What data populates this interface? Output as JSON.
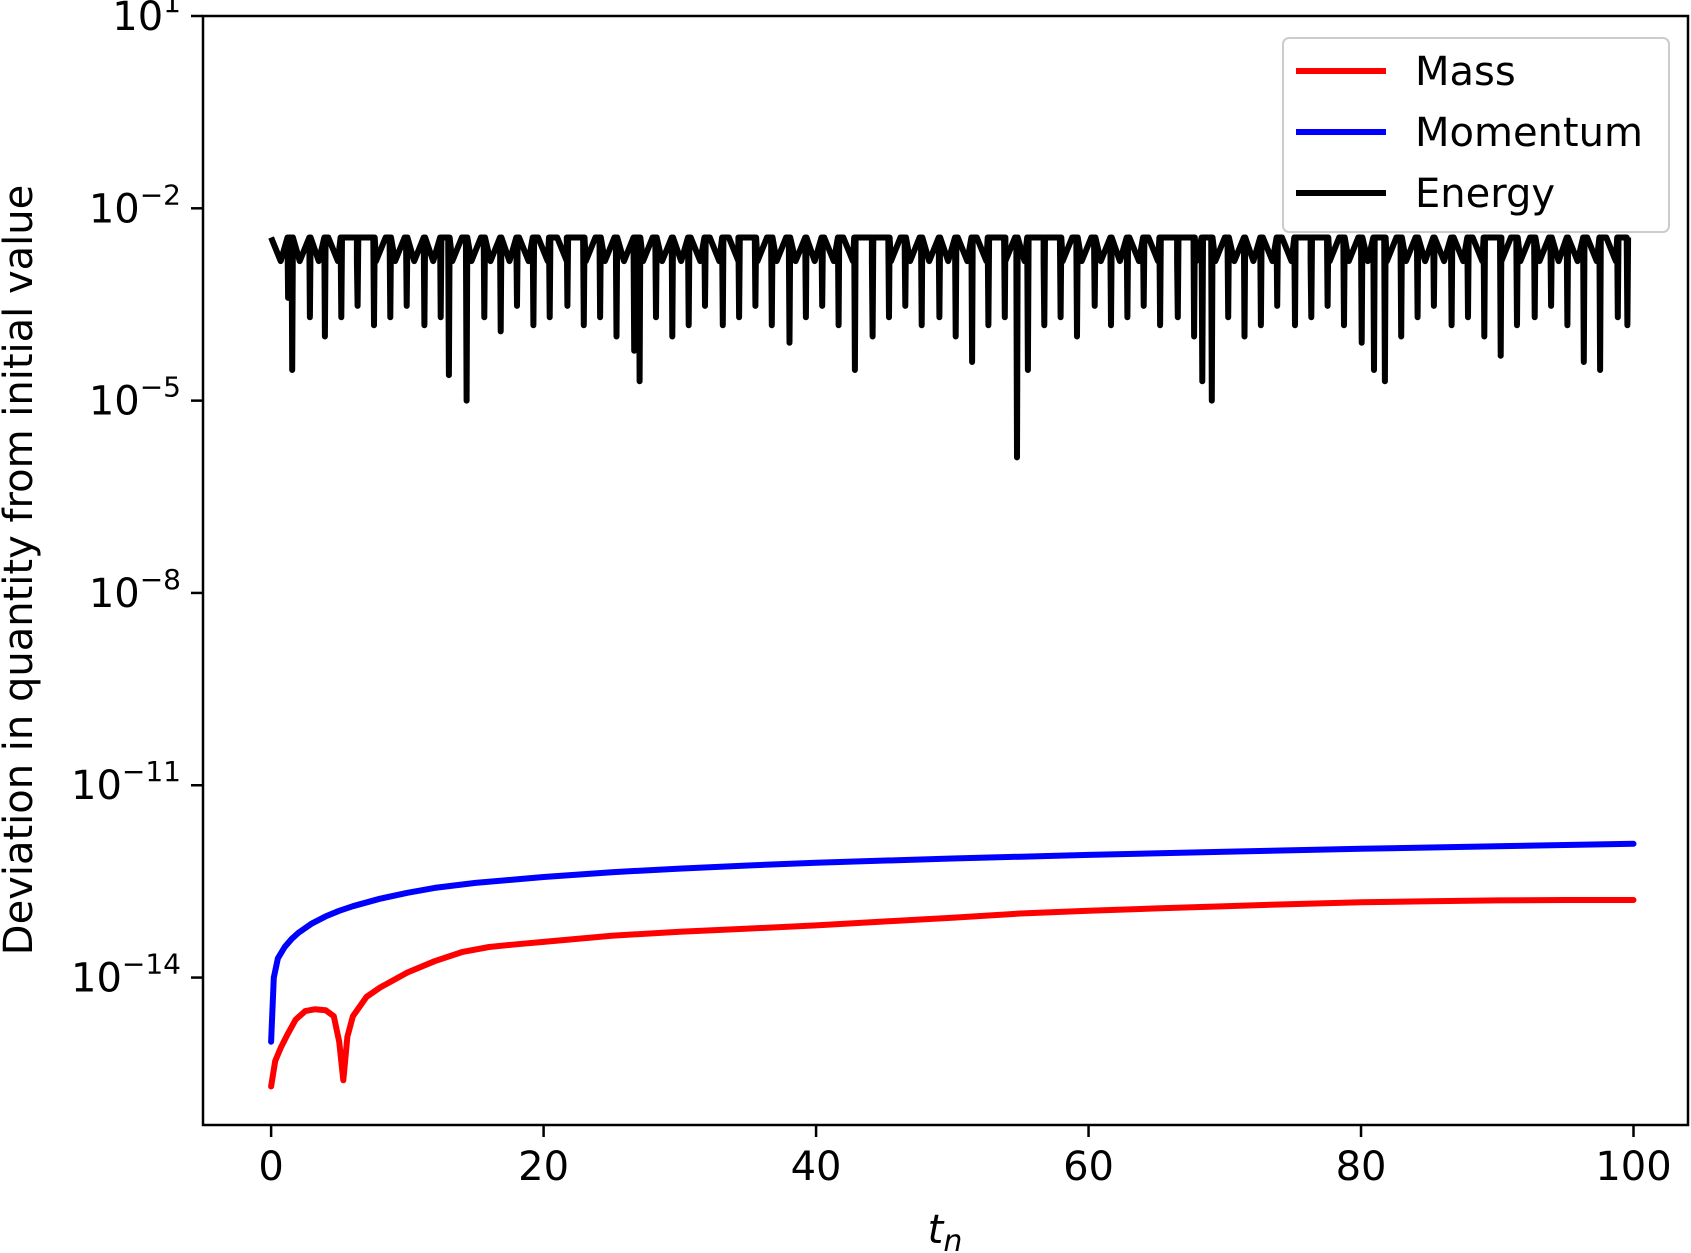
{
  "chart_data": {
    "type": "line",
    "title": "",
    "xlabel": "t",
    "xlabel_subscript": "n",
    "ylabel": "Deviation in quantity from initial value",
    "yscale": "log",
    "xlim": [
      -5,
      104
    ],
    "ylim_exp": [
      -16.3,
      1
    ],
    "xticks": [
      0,
      20,
      40,
      60,
      80,
      100
    ],
    "xtick_labels": [
      "0",
      "20",
      "40",
      "60",
      "80",
      "100"
    ],
    "yticks_exp": [
      1,
      -2,
      -5,
      -8,
      -11,
      -14
    ],
    "ytick_base": "10",
    "ytick_exponents": [
      "1",
      "−2",
      "−5",
      "−8",
      "−11",
      "−14"
    ],
    "grid": false,
    "legend": {
      "position": "top-right",
      "entries": [
        "Mass",
        "Momentum",
        "Energy"
      ]
    },
    "series": [
      {
        "name": "Mass",
        "color": "#ff0000",
        "x": [
          0,
          0.3,
          0.7,
          1.2,
          1.8,
          2.5,
          3.2,
          4,
          4.6,
          5.0,
          5.3,
          5.6,
          6.0,
          7,
          8,
          10,
          12,
          14,
          16,
          18,
          20,
          25,
          30,
          35,
          40,
          45,
          50,
          55,
          60,
          65,
          70,
          75,
          80,
          85,
          90,
          95,
          100
        ],
        "y": [
          2e-16,
          5e-16,
          8e-16,
          1.3e-15,
          2.2e-15,
          3e-15,
          3.2e-15,
          3.1e-15,
          2.5e-15,
          1e-15,
          2.5e-16,
          1.2e-15,
          2.5e-15,
          5e-15,
          7e-15,
          1.2e-14,
          1.8e-14,
          2.5e-14,
          3e-14,
          3.3e-14,
          3.6e-14,
          4.5e-14,
          5.2e-14,
          5.8e-14,
          6.5e-14,
          7.5e-14,
          8.6e-14,
          1e-13,
          1.1e-13,
          1.2e-13,
          1.3e-13,
          1.4e-13,
          1.5e-13,
          1.55e-13,
          1.6e-13,
          1.62e-13,
          1.62e-13
        ]
      },
      {
        "name": "Momentum",
        "color": "#0000ff",
        "x": [
          0,
          0.2,
          0.5,
          1,
          1.5,
          2,
          3,
          4,
          5,
          6,
          8,
          10,
          12,
          15,
          18,
          20,
          25,
          30,
          35,
          40,
          50,
          60,
          70,
          80,
          90,
          100
        ],
        "y": [
          1e-15,
          1e-14,
          2e-14,
          3e-14,
          4e-14,
          5e-14,
          7e-14,
          9e-14,
          1.1e-13,
          1.3e-13,
          1.7e-13,
          2.1e-13,
          2.5e-13,
          3e-13,
          3.4e-13,
          3.7e-13,
          4.4e-13,
          5e-13,
          5.6e-13,
          6.2e-13,
          7.2e-13,
          8.2e-13,
          9.2e-13,
          1.02e-12,
          1.12e-12,
          1.22e-12
        ]
      },
      {
        "name": "Energy",
        "color": "#000000",
        "upper": 0.0035,
        "lower": 0.0015,
        "spike_spacing": 1.4,
        "spikes": [
          [
            1.2,
            0.0004
          ],
          [
            1.5,
            3e-05
          ],
          [
            2.8,
            0.0002
          ],
          [
            3.9,
            0.0001
          ],
          [
            5.1,
            0.0002
          ],
          [
            6.3,
            0.0003
          ],
          [
            7.5,
            0.00015
          ],
          [
            8.7,
            0.0002
          ],
          [
            9.9,
            0.0003
          ],
          [
            11.2,
            0.00015
          ],
          [
            12.4,
            0.0002
          ],
          [
            13,
            2.5e-05
          ],
          [
            14.3,
            1e-05
          ],
          [
            15.6,
            0.0002
          ],
          [
            16.8,
            0.00012
          ],
          [
            18,
            0.0003
          ],
          [
            19.2,
            0.00015
          ],
          [
            20.4,
            0.0002
          ],
          [
            21.7,
            0.0003
          ],
          [
            22.9,
            0.00015
          ],
          [
            24.1,
            0.0002
          ],
          [
            25.3,
            0.0001
          ],
          [
            26.6,
            6e-05
          ],
          [
            27,
            2e-05
          ],
          [
            28.2,
            0.0002
          ],
          [
            29.4,
            0.0001
          ],
          [
            30.6,
            0.00015
          ],
          [
            31.8,
            0.0003
          ],
          [
            33.1,
            0.00015
          ],
          [
            34.3,
            0.0002
          ],
          [
            35.5,
            0.0003
          ],
          [
            36.7,
            0.00015
          ],
          [
            38,
            8e-05
          ],
          [
            39.2,
            0.0002
          ],
          [
            40.4,
            0.0003
          ],
          [
            41.6,
            0.00015
          ],
          [
            42.8,
            3e-05
          ],
          [
            44.1,
            0.0001
          ],
          [
            45.3,
            0.0002
          ],
          [
            46.5,
            0.0003
          ],
          [
            47.7,
            0.00015
          ],
          [
            49,
            0.0002
          ],
          [
            50.2,
            0.0001
          ],
          [
            51.4,
            4e-05
          ],
          [
            52.6,
            0.00015
          ],
          [
            53.8,
            0.0002
          ],
          [
            54.7,
            1.3e-06
          ],
          [
            55.5,
            3e-05
          ],
          [
            56.7,
            0.00015
          ],
          [
            57.9,
            0.0002
          ],
          [
            59.1,
            0.0001
          ],
          [
            60.4,
            0.0003
          ],
          [
            61.6,
            0.00015
          ],
          [
            62.8,
            0.0002
          ],
          [
            64,
            0.0003
          ],
          [
            65.2,
            0.00015
          ],
          [
            66.5,
            0.0002
          ],
          [
            67.7,
            0.0001
          ],
          [
            68.3,
            2e-05
          ],
          [
            69,
            1e-05
          ],
          [
            70.2,
            0.0002
          ],
          [
            71.4,
            0.0001
          ],
          [
            72.6,
            0.00015
          ],
          [
            73.8,
            0.0003
          ],
          [
            75.1,
            0.00015
          ],
          [
            76.3,
            0.0002
          ],
          [
            77.5,
            0.0003
          ],
          [
            78.7,
            0.00015
          ],
          [
            80,
            8e-05
          ],
          [
            80.9,
            3e-05
          ],
          [
            81.7,
            2e-05
          ],
          [
            82.9,
            0.0001
          ],
          [
            84.1,
            0.0002
          ],
          [
            85.3,
            0.0003
          ],
          [
            86.6,
            0.00015
          ],
          [
            87.8,
            0.0002
          ],
          [
            89,
            0.0001
          ],
          [
            90.2,
            5e-05
          ],
          [
            91.4,
            0.00015
          ],
          [
            92.7,
            0.0002
          ],
          [
            93.9,
            0.0003
          ],
          [
            95.1,
            0.00015
          ],
          [
            96.3,
            4e-05
          ],
          [
            97.5,
            3e-05
          ],
          [
            98.8,
            0.0002
          ],
          [
            99.5,
            0.00015
          ]
        ]
      }
    ]
  }
}
